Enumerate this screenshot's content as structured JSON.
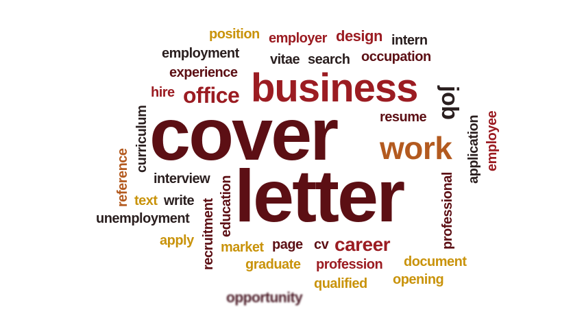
{
  "colors": {
    "maroon": "#5c0f14",
    "crimson": "#9b1c22",
    "dark": "#2a1f1f",
    "gold": "#c9930b",
    "orange": "#b35a1f",
    "plum": "#4a1a26"
  },
  "words": [
    {
      "text": "position"
    },
    {
      "text": "employer"
    },
    {
      "text": "design"
    },
    {
      "text": "intern"
    },
    {
      "text": "employment"
    },
    {
      "text": "vitae"
    },
    {
      "text": "search"
    },
    {
      "text": "occupation"
    },
    {
      "text": "experience"
    },
    {
      "text": "business"
    },
    {
      "text": "hire"
    },
    {
      "text": "office"
    },
    {
      "text": "job"
    },
    {
      "text": "curriculum"
    },
    {
      "text": "cover"
    },
    {
      "text": "resume"
    },
    {
      "text": "application"
    },
    {
      "text": "employee"
    },
    {
      "text": "work"
    },
    {
      "text": "reference"
    },
    {
      "text": "interview"
    },
    {
      "text": "letter"
    },
    {
      "text": "professional"
    },
    {
      "text": "text"
    },
    {
      "text": "write"
    },
    {
      "text": "recruitment"
    },
    {
      "text": "education"
    },
    {
      "text": "unemployment"
    },
    {
      "text": "apply"
    },
    {
      "text": "market"
    },
    {
      "text": "page"
    },
    {
      "text": "cv"
    },
    {
      "text": "career"
    },
    {
      "text": "document"
    },
    {
      "text": "graduate"
    },
    {
      "text": "profession"
    },
    {
      "text": "opening"
    },
    {
      "text": "qualified"
    },
    {
      "text": "opportunity"
    }
  ]
}
